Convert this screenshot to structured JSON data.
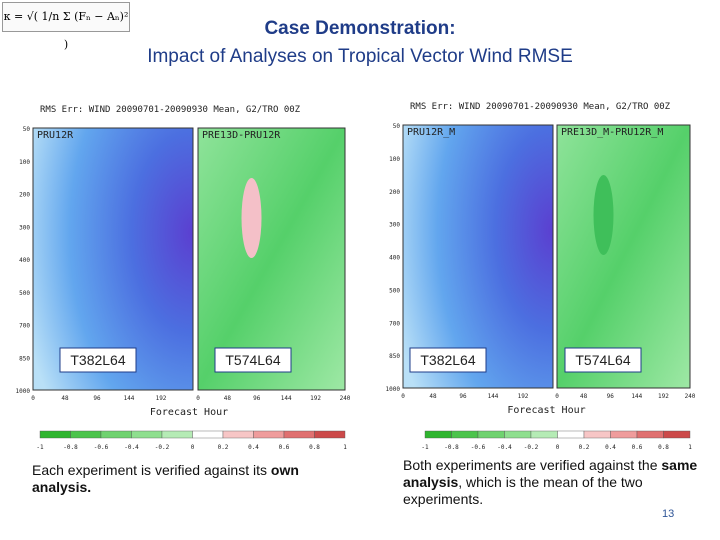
{
  "header": {
    "formula": "κ = √( 1/n Σ (Fₙ − Aₙ)² )",
    "title": "Case Demonstration:",
    "subtitle": "Impact of Analyses on Tropical Vector Wind RMSE"
  },
  "panels": [
    {
      "plot_title": "RMS Err: WIND 20090701-20090930 Mean, G2/TRO 00Z",
      "left_label": "PRU12R",
      "right_label": "PRE13D-PRU12R",
      "left_model": "T382L64",
      "right_model": "T574L64",
      "x_label": "Forecast Hour",
      "left_xticks": [
        "0",
        "48",
        "96",
        "144",
        "192"
      ],
      "right_xticks": [
        "0",
        "48",
        "96",
        "144",
        "192",
        "240"
      ],
      "yticks": [
        "50",
        "100",
        "200",
        "300",
        "400",
        "500",
        "700",
        "850",
        "1000"
      ],
      "colorbar": [
        "-1",
        "-0.8",
        "-0.6",
        "-0.4",
        "-0.2",
        "0",
        "0.2",
        "0.4",
        "0.6",
        "0.8",
        "1"
      ],
      "caption": [
        "Each experiment is verified against its ",
        "own analysis."
      ]
    },
    {
      "plot_title": "RMS Err: WIND 20090701-20090930 Mean, G2/TRO 00Z",
      "left_label": "PRU12R_M",
      "right_label": "PRE13D_M-PRU12R_M",
      "left_model": "T382L64",
      "right_model": "T574L64",
      "x_label": "Forecast Hour",
      "left_xticks": [
        "0",
        "48",
        "96",
        "144",
        "192"
      ],
      "right_xticks": [
        "0",
        "48",
        "96",
        "144",
        "192",
        "240"
      ],
      "yticks": [
        "50",
        "100",
        "200",
        "300",
        "400",
        "500",
        "700",
        "850",
        "1000"
      ],
      "colorbar": [
        "-1",
        "-0.8",
        "-0.6",
        "-0.4",
        "-0.2",
        "0",
        "0.2",
        "0.4",
        "0.6",
        "0.8",
        "1"
      ],
      "caption": [
        "Both experiments are verified against the ",
        "same analysis",
        ", which is the mean of the two experiments."
      ]
    }
  ],
  "page_number": "13"
}
